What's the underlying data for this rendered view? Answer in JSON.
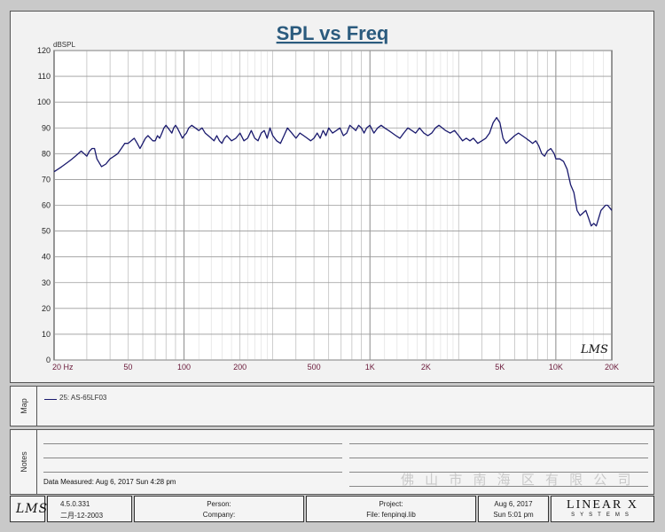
{
  "chart_data": {
    "type": "line",
    "title": "SPL vs Freq",
    "ylabel": "dBSPL",
    "xlabel": "",
    "x_scale": "log",
    "xlim": [
      20,
      20000
    ],
    "ylim": [
      0,
      120
    ],
    "y_ticks": [
      0,
      10,
      20,
      30,
      40,
      50,
      60,
      70,
      80,
      90,
      100,
      110,
      120
    ],
    "x_tick_labels": [
      {
        "value": 20,
        "label": "20  Hz"
      },
      {
        "value": 50,
        "label": "50"
      },
      {
        "value": 100,
        "label": "100"
      },
      {
        "value": 200,
        "label": "200"
      },
      {
        "value": 500,
        "label": "500"
      },
      {
        "value": 1000,
        "label": "1K"
      },
      {
        "value": 2000,
        "label": "2K"
      },
      {
        "value": 5000,
        "label": "5K"
      },
      {
        "value": 10000,
        "label": "10K"
      },
      {
        "value": 20000,
        "label": "20K"
      }
    ],
    "grid": true,
    "series": [
      {
        "name": "25: AS-65LF03",
        "color": "#1a1a6e",
        "x": [
          20,
          21,
          22,
          23,
          24,
          25,
          26,
          27,
          28,
          29,
          30,
          31,
          32,
          33,
          34,
          36,
          38,
          40,
          42,
          44,
          46,
          48,
          50,
          52,
          54,
          56,
          58,
          60,
          62,
          64,
          66,
          68,
          70,
          72,
          74,
          76,
          78,
          80,
          82,
          84,
          86,
          88,
          90,
          92,
          95,
          98,
          100,
          103,
          106,
          110,
          115,
          120,
          125,
          130,
          135,
          140,
          145,
          150,
          155,
          160,
          165,
          170,
          180,
          190,
          200,
          210,
          220,
          230,
          240,
          250,
          260,
          270,
          280,
          290,
          300,
          315,
          330,
          345,
          360,
          380,
          400,
          420,
          440,
          460,
          480,
          500,
          520,
          540,
          560,
          580,
          600,
          630,
          660,
          690,
          720,
          750,
          780,
          810,
          840,
          870,
          900,
          930,
          960,
          1000,
          1050,
          1100,
          1150,
          1200,
          1260,
          1320,
          1380,
          1450,
          1520,
          1600,
          1680,
          1760,
          1850,
          1950,
          2050,
          2150,
          2250,
          2350,
          2450,
          2550,
          2700,
          2850,
          3000,
          3150,
          3300,
          3450,
          3600,
          3800,
          4000,
          4200,
          4400,
          4600,
          4800,
          5000,
          5200,
          5400,
          5600,
          5800,
          6000,
          6300,
          6600,
          6900,
          7200,
          7500,
          7800,
          8100,
          8400,
          8700,
          9000,
          9400,
          9800,
          10000,
          10500,
          11000,
          11500,
          12000,
          12500,
          13000,
          13500,
          14000,
          14500,
          15000,
          15500,
          16000,
          16500,
          17000,
          17500,
          18000,
          18500,
          19000,
          19500,
          20000
        ],
        "y": [
          73,
          74,
          75,
          76,
          77,
          78,
          79,
          80,
          81,
          80,
          79,
          81,
          82,
          82,
          78,
          75,
          76,
          78,
          79,
          80,
          82,
          84,
          84,
          85,
          86,
          84,
          82,
          84,
          86,
          87,
          86,
          85,
          85,
          87,
          86,
          88,
          90,
          91,
          90,
          89,
          88,
          90,
          91,
          90,
          88,
          86,
          87,
          88,
          90,
          91,
          90,
          89,
          90,
          88,
          87,
          86,
          85,
          87,
          85,
          84,
          86,
          87,
          85,
          86,
          88,
          85,
          86,
          89,
          86,
          85,
          88,
          89,
          86,
          90,
          87,
          85,
          84,
          87,
          90,
          88,
          86,
          88,
          87,
          86,
          85,
          86,
          88,
          86,
          89,
          87,
          90,
          88,
          89,
          90,
          87,
          88,
          91,
          90,
          89,
          91,
          90,
          88,
          90,
          91,
          88,
          90,
          91,
          90,
          89,
          88,
          87,
          86,
          88,
          90,
          89,
          88,
          90,
          88,
          87,
          88,
          90,
          91,
          90,
          89,
          88,
          89,
          87,
          85,
          86,
          85,
          86,
          84,
          85,
          86,
          88,
          92,
          94,
          92,
          86,
          84,
          85,
          86,
          87,
          88,
          87,
          86,
          85,
          84,
          85,
          83,
          80,
          79,
          81,
          82,
          80,
          78,
          78,
          77,
          74,
          68,
          65,
          58,
          56,
          57,
          58,
          55,
          52,
          53,
          52,
          55,
          58,
          59,
          60,
          60,
          59,
          58
        ]
      }
    ]
  },
  "map": {
    "label": "Map",
    "legend_entry": "25: AS-65LF03"
  },
  "notes": {
    "label": "Notes",
    "data_measured": "Data Measured: Aug  6, 2017  Sun  4:28 pm",
    "watermark": "佛 山 市 南 海 区 有 限 公 司"
  },
  "footer": {
    "logo": "LMS",
    "version": "4.5.0.331",
    "build_date": "二月-12-2003",
    "person_label": "Person:",
    "company_label": "Company:",
    "project_label": "Project:",
    "file_label": "File: fenpinqi.lib",
    "date": "Aug  6, 2017",
    "time": "Sun  5:01 pm",
    "brand_top": "LINEAR X",
    "brand_bottom": "SYSTEMS"
  },
  "plot_logo": "LMS"
}
